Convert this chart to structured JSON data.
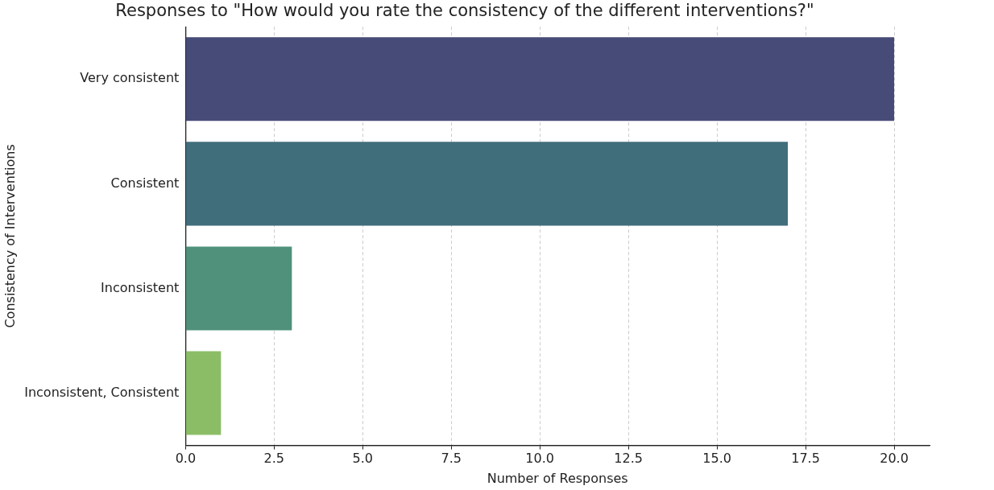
{
  "chart_data": {
    "type": "bar",
    "orientation": "horizontal",
    "title": "Responses to \"How would you rate the consistency of the different interventions?\"",
    "xlabel": "Number of Responses",
    "ylabel": "Consistency of Interventions",
    "categories": [
      "Very consistent",
      "Consistent",
      "Inconsistent",
      "Inconsistent, Consistent"
    ],
    "values": [
      20,
      17,
      3,
      1
    ],
    "colors": [
      "#474b78",
      "#416e7b",
      "#4f917b",
      "#8bbd67"
    ],
    "xlim": [
      0,
      21
    ],
    "xticks": [
      {
        "value": 0,
        "label": "0.0"
      },
      {
        "value": 2.5,
        "label": "2.5"
      },
      {
        "value": 5,
        "label": "5.0"
      },
      {
        "value": 7.5,
        "label": "7.5"
      },
      {
        "value": 10,
        "label": "10.0"
      },
      {
        "value": 12.5,
        "label": "12.5"
      },
      {
        "value": 15,
        "label": "15.0"
      },
      {
        "value": 17.5,
        "label": "17.5"
      },
      {
        "value": 20,
        "label": "20.0"
      }
    ],
    "grid": "x",
    "legend": false
  }
}
